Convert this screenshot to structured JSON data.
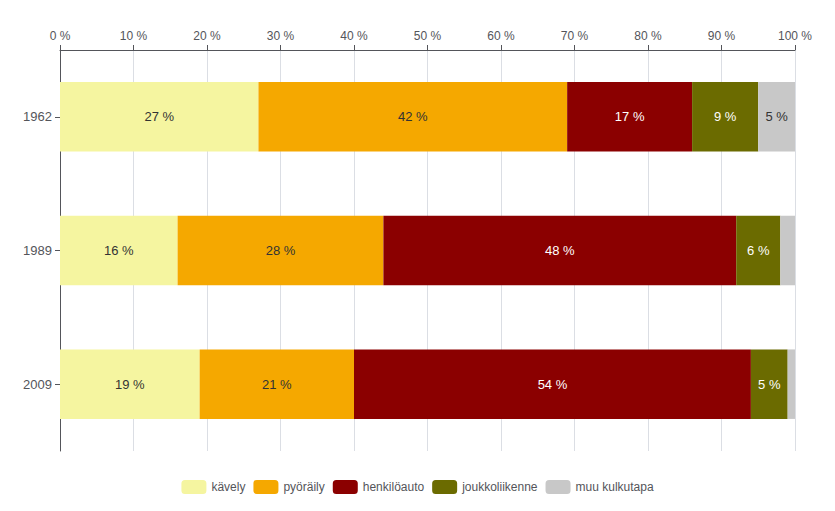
{
  "chart_data": {
    "type": "bar",
    "orientation": "horizontal",
    "stacked": true,
    "data_labels": true,
    "grid": true,
    "legend": "bottom",
    "categories": [
      "1962",
      "1989",
      "2009"
    ],
    "series": [
      {
        "name": "kävely",
        "color": "#f5f5a0",
        "values": [
          27,
          16,
          19
        ],
        "value_labels": [
          "27 %",
          "16 %",
          "19 %"
        ]
      },
      {
        "name": "pyöräily",
        "color": "#f5a800",
        "values": [
          42,
          28,
          21
        ],
        "value_labels": [
          "42 %",
          "28 %",
          "21 %"
        ]
      },
      {
        "name": "henkilöauto",
        "color": "#8b0000",
        "values": [
          17,
          48,
          54
        ],
        "value_labels": [
          "17 %",
          "48 %",
          "54 %"
        ]
      },
      {
        "name": "joukkoliikenne",
        "color": "#6b6b00",
        "values": [
          9,
          6,
          5
        ],
        "value_labels": [
          "9 %",
          "6 %",
          "5 %"
        ]
      },
      {
        "name": "muu kulkutapa",
        "color": "#c8c8c8",
        "values": [
          5,
          2,
          1
        ],
        "value_labels": [
          "5 %",
          null,
          null
        ]
      }
    ],
    "xlim": [
      0,
      100
    ],
    "xticks": [
      {
        "value": 0,
        "label": "0 %"
      },
      {
        "value": 10,
        "label": "10 %"
      },
      {
        "value": 20,
        "label": "20 %"
      },
      {
        "value": 30,
        "label": "30 %"
      },
      {
        "value": 40,
        "label": "40 %"
      },
      {
        "value": 50,
        "label": "50 %"
      },
      {
        "value": 60,
        "label": "60 %"
      },
      {
        "value": 70,
        "label": "70 %"
      },
      {
        "value": 80,
        "label": "80 %"
      },
      {
        "value": 90,
        "label": "90 %"
      },
      {
        "value": 100,
        "label": "100 %"
      }
    ]
  }
}
